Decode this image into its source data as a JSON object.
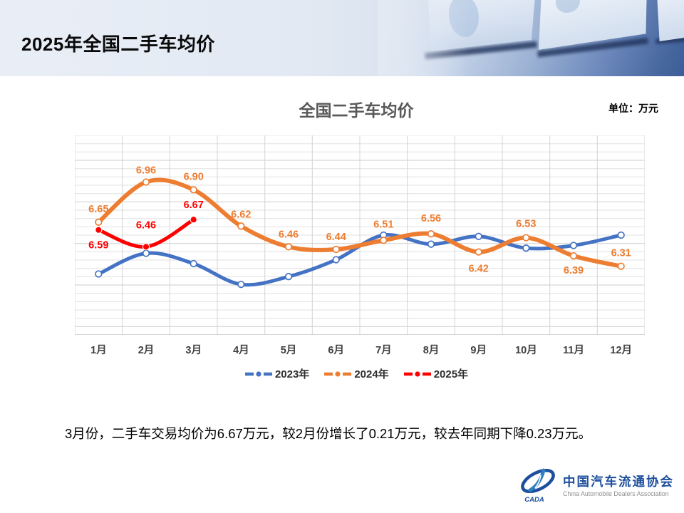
{
  "header": {
    "title": "2025年全国二手车均价"
  },
  "chart_data": {
    "type": "line",
    "title": "全国二手车均价",
    "unit_label": "单位：万元",
    "categories": [
      "1月",
      "2月",
      "3月",
      "4月",
      "5月",
      "6月",
      "7月",
      "8月",
      "9月",
      "10月",
      "11月",
      "12月"
    ],
    "ylim": [
      5.78,
      7.32
    ],
    "grid": {
      "horizontal_minor_divisions": 24,
      "vertical": "category-boundaries"
    },
    "legend_position": "bottom",
    "series": [
      {
        "name": "2023年",
        "color": "#4472C4",
        "line_width": 5,
        "marker": "open",
        "labels_shown": false,
        "values": [
          6.25,
          6.41,
          6.33,
          6.17,
          6.23,
          6.36,
          6.55,
          6.48,
          6.54,
          6.45,
          6.47,
          6.55
        ]
      },
      {
        "name": "2024年",
        "color": "#ED7D31",
        "line_width": 6,
        "marker": "open",
        "labels_shown": true,
        "values": [
          6.65,
          6.96,
          6.9,
          6.62,
          6.46,
          6.44,
          6.51,
          6.56,
          6.42,
          6.53,
          6.39,
          6.31
        ],
        "label_offsets": [
          -14,
          -12,
          -14,
          -12,
          -13,
          -13,
          -18,
          -17,
          28,
          -15,
          25,
          -14
        ]
      },
      {
        "name": "2025年",
        "color": "#FF0000",
        "line_width": 5,
        "marker": "solid",
        "labels_shown": true,
        "values": [
          6.59,
          6.46,
          6.67
        ],
        "label_offsets": [
          26,
          -26,
          -16
        ]
      }
    ]
  },
  "summary": {
    "text": "3月份，二手车交易均价为6.67万元，较2月份增长了0.21万元，较去年同期下降0.23万元。"
  },
  "footer_logo": {
    "mark": "CADA",
    "cn": "中国汽车流通协会",
    "en": "China Automobile Dealers Association"
  }
}
